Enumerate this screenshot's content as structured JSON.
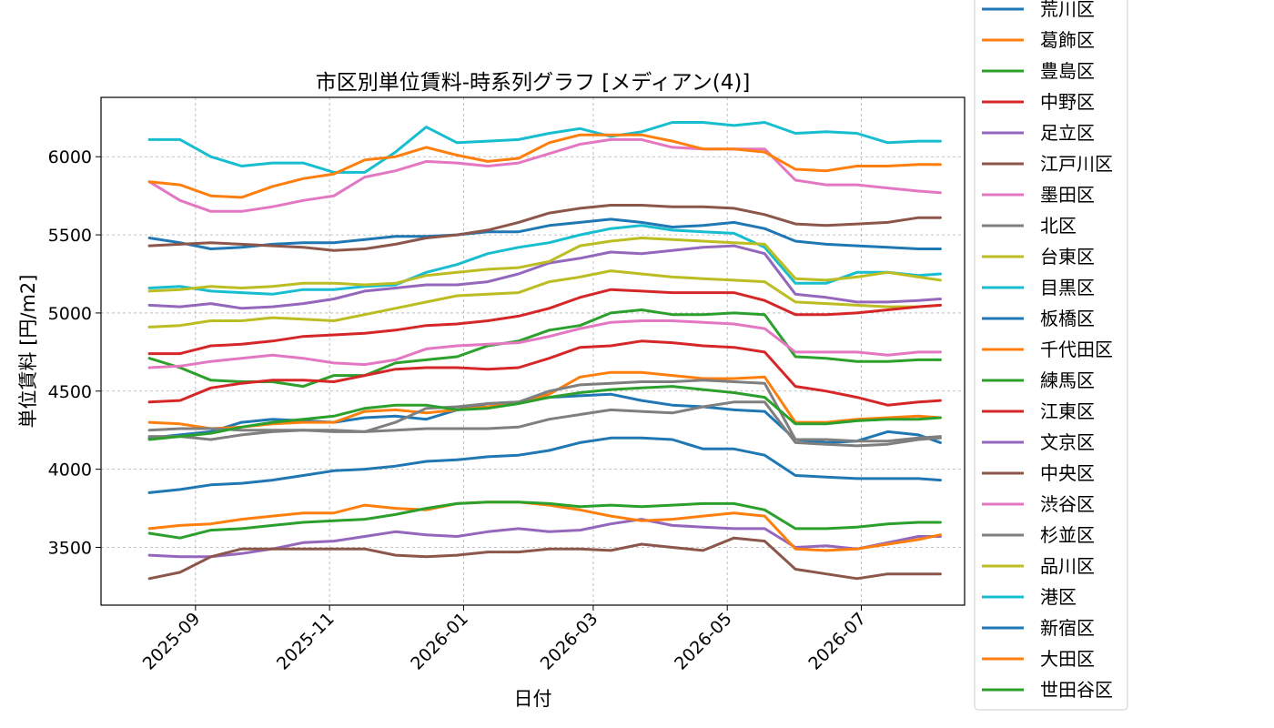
{
  "chart_data": {
    "type": "line",
    "title": "市区別単位賃料-時系列グラフ [メディアン(4)]",
    "xlabel": "日付",
    "ylabel": "単位賃料 [円/m2]",
    "xlim": [
      "2025-07-20",
      "2026-08-17"
    ],
    "ylim": [
      3130,
      6380
    ],
    "xticks": [
      "2025-09",
      "2025-11",
      "2026-01",
      "2026-03",
      "2026-05",
      "2026-07"
    ],
    "yticks": [
      3500,
      4000,
      4500,
      5000,
      5500,
      6000
    ],
    "grid": true,
    "legend_position": "right",
    "x": [
      "2025-08-11",
      "2025-08-25",
      "2025-09-08",
      "2025-09-22",
      "2025-10-06",
      "2025-10-20",
      "2025-11-03",
      "2025-11-17",
      "2025-12-01",
      "2025-12-15",
      "2025-12-29",
      "2026-01-12",
      "2026-01-26",
      "2026-02-09",
      "2026-02-23",
      "2026-03-09",
      "2026-03-23",
      "2026-04-06",
      "2026-04-20",
      "2026-05-04",
      "2026-05-18",
      "2026-06-01",
      "2026-06-15",
      "2026-06-29",
      "2026-07-13",
      "2026-07-27",
      "2026-08-06"
    ],
    "series": [
      {
        "name": "荒川区",
        "color": "#1f77b4",
        "values": [
          4200,
          4220,
          4240,
          4300,
          4320,
          4310,
          4300,
          4330,
          4340,
          4320,
          4380,
          4420,
          4430,
          4460,
          4470,
          4480,
          4440,
          4410,
          4400,
          4380,
          4370,
          4190,
          4170,
          4180,
          4240,
          4220,
          4170
        ]
      },
      {
        "name": "葛飾区",
        "color": "#ff7f0e",
        "values": [
          4300,
          4290,
          4260,
          4270,
          4290,
          4300,
          4300,
          4370,
          4380,
          4360,
          4380,
          4400,
          4430,
          4480,
          4590,
          4620,
          4620,
          4600,
          4580,
          4580,
          4590,
          4300,
          4300,
          4320,
          4330,
          4340,
          4330
        ]
      },
      {
        "name": "豊島区",
        "color": "#2ca02c",
        "values": [
          4710,
          4650,
          4570,
          4560,
          4560,
          4530,
          4600,
          4600,
          4680,
          4700,
          4720,
          4790,
          4820,
          4890,
          4920,
          5000,
          5020,
          4990,
          4990,
          5000,
          4990,
          4720,
          4710,
          4690,
          4690,
          4700,
          4700
        ]
      },
      {
        "name": "中野区",
        "color": "#d62728",
        "values": [
          4430,
          4440,
          4520,
          4550,
          4570,
          4570,
          4560,
          4600,
          4640,
          4650,
          4650,
          4640,
          4650,
          4710,
          4780,
          4790,
          4820,
          4810,
          4790,
          4780,
          4750,
          4530,
          4500,
          4460,
          4410,
          4430,
          4440
        ]
      },
      {
        "name": "足立区",
        "color": "#9467bd",
        "values": [
          3450,
          3440,
          3440,
          3460,
          3490,
          3530,
          3540,
          3570,
          3600,
          3580,
          3570,
          3600,
          3620,
          3600,
          3610,
          3650,
          3680,
          3640,
          3630,
          3620,
          3620,
          3500,
          3510,
          3490,
          3530,
          3570,
          3570
        ]
      },
      {
        "name": "江戸川区",
        "color": "#8c564b",
        "values": [
          3300,
          3340,
          3440,
          3490,
          3490,
          3490,
          3490,
          3490,
          3450,
          3440,
          3450,
          3470,
          3470,
          3490,
          3490,
          3480,
          3520,
          3500,
          3480,
          3560,
          3540,
          3360,
          3330,
          3300,
          3330,
          3330,
          3330
        ]
      },
      {
        "name": "墨田区",
        "color": "#e377c2",
        "values": [
          5840,
          5720,
          5650,
          5650,
          5680,
          5720,
          5750,
          5870,
          5910,
          5970,
          5960,
          5940,
          5960,
          6020,
          6080,
          6110,
          6110,
          6060,
          6050,
          6050,
          6050,
          5850,
          5820,
          5820,
          5800,
          5780,
          5770
        ]
      },
      {
        "name": "北区",
        "color": "#7f7f7f",
        "values": [
          4250,
          4260,
          4260,
          4250,
          4250,
          4250,
          4240,
          4240,
          4300,
          4390,
          4400,
          4420,
          4430,
          4500,
          4540,
          4550,
          4560,
          4560,
          4570,
          4560,
          4550,
          4190,
          4190,
          4180,
          4180,
          4200,
          4210
        ]
      },
      {
        "name": "台東区",
        "color": "#bcbd22",
        "values": [
          4910,
          4920,
          4950,
          4950,
          4970,
          4960,
          4950,
          4990,
          5030,
          5070,
          5110,
          5120,
          5130,
          5200,
          5230,
          5270,
          5250,
          5230,
          5220,
          5210,
          5200,
          5070,
          5060,
          5050,
          5040,
          5040,
          5050
        ]
      },
      {
        "name": "目黒区",
        "color": "#17becf",
        "values": [
          5160,
          5170,
          5140,
          5130,
          5120,
          5150,
          5150,
          5170,
          5180,
          5260,
          5310,
          5380,
          5420,
          5450,
          5500,
          5540,
          5560,
          5530,
          5520,
          5510,
          5420,
          5190,
          5190,
          5260,
          5260,
          5240,
          5250
        ]
      },
      {
        "name": "板橋区",
        "color": "#1f77b4",
        "values": [
          5480,
          5450,
          5410,
          5420,
          5440,
          5450,
          5450,
          5470,
          5490,
          5490,
          5500,
          5520,
          5520,
          5560,
          5580,
          5600,
          5580,
          5550,
          5560,
          5580,
          5540,
          5460,
          5440,
          5430,
          5420,
          5410,
          5410
        ]
      },
      {
        "name": "千代田区",
        "color": "#ff7f0e",
        "values": [
          3620,
          3640,
          3650,
          3680,
          3700,
          3720,
          3720,
          3770,
          3750,
          3740,
          3780,
          3790,
          3790,
          3770,
          3740,
          3700,
          3670,
          3680,
          3700,
          3720,
          3700,
          3490,
          3480,
          3490,
          3520,
          3550,
          3580
        ]
      },
      {
        "name": "練馬区",
        "color": "#2ca02c",
        "values": [
          3590,
          3560,
          3610,
          3620,
          3640,
          3660,
          3670,
          3680,
          3710,
          3750,
          3780,
          3790,
          3790,
          3780,
          3760,
          3770,
          3760,
          3770,
          3780,
          3780,
          3740,
          3620,
          3620,
          3630,
          3650,
          3660,
          3660
        ]
      },
      {
        "name": "江東区",
        "color": "#d62728",
        "values": [
          4740,
          4740,
          4790,
          4800,
          4820,
          4850,
          4860,
          4870,
          4890,
          4920,
          4930,
          4950,
          4980,
          5030,
          5100,
          5150,
          5140,
          5130,
          5130,
          5130,
          5080,
          4990,
          4990,
          5000,
          5020,
          5040,
          5050
        ]
      },
      {
        "name": "文京区",
        "color": "#9467bd",
        "values": [
          5050,
          5040,
          5060,
          5030,
          5040,
          5060,
          5090,
          5140,
          5160,
          5180,
          5180,
          5200,
          5250,
          5320,
          5350,
          5390,
          5380,
          5400,
          5420,
          5430,
          5380,
          5120,
          5100,
          5070,
          5070,
          5080,
          5090
        ]
      },
      {
        "name": "中央区",
        "color": "#8c564b",
        "values": [
          5430,
          5440,
          5450,
          5440,
          5430,
          5420,
          5400,
          5410,
          5440,
          5480,
          5500,
          5530,
          5580,
          5640,
          5670,
          5690,
          5690,
          5680,
          5680,
          5670,
          5630,
          5570,
          5560,
          5570,
          5580,
          5610,
          5610
        ]
      },
      {
        "name": "渋谷区",
        "color": "#e377c2",
        "values": [
          4650,
          4660,
          4690,
          4710,
          4730,
          4710,
          4680,
          4670,
          4700,
          4770,
          4790,
          4800,
          4810,
          4850,
          4900,
          4940,
          4950,
          4950,
          4940,
          4930,
          4900,
          4750,
          4750,
          4750,
          4730,
          4750,
          4750
        ]
      },
      {
        "name": "杉並区",
        "color": "#7f7f7f",
        "values": [
          4210,
          4210,
          4190,
          4220,
          4240,
          4250,
          4250,
          4240,
          4250,
          4260,
          4260,
          4260,
          4270,
          4320,
          4350,
          4380,
          4370,
          4360,
          4400,
          4430,
          4430,
          4170,
          4160,
          4150,
          4160,
          4190,
          4200
        ]
      },
      {
        "name": "品川区",
        "color": "#bcbd22",
        "values": [
          5140,
          5150,
          5170,
          5160,
          5170,
          5190,
          5190,
          5180,
          5190,
          5240,
          5260,
          5280,
          5290,
          5330,
          5430,
          5460,
          5480,
          5470,
          5460,
          5450,
          5440,
          5220,
          5210,
          5230,
          5260,
          5230,
          5210
        ]
      },
      {
        "name": "港区",
        "color": "#17becf",
        "values": [
          6110,
          6110,
          6000,
          5940,
          5960,
          5960,
          5900,
          5900,
          6030,
          6190,
          6090,
          6100,
          6110,
          6150,
          6180,
          6130,
          6160,
          6220,
          6220,
          6200,
          6220,
          6150,
          6160,
          6150,
          6090,
          6100,
          6100
        ]
      },
      {
        "name": "新宿区",
        "color": "#1f77b4",
        "values": [
          3850,
          3870,
          3900,
          3910,
          3930,
          3960,
          3990,
          4000,
          4020,
          4050,
          4060,
          4080,
          4090,
          4120,
          4170,
          4200,
          4200,
          4190,
          4130,
          4130,
          4090,
          3960,
          3950,
          3940,
          3940,
          3940,
          3930
        ]
      },
      {
        "name": "大田区",
        "color": "#ff7f0e",
        "values": [
          5840,
          5820,
          5750,
          5740,
          5810,
          5860,
          5890,
          5980,
          6000,
          6060,
          6010,
          5970,
          5990,
          6090,
          6140,
          6140,
          6140,
          6100,
          6050,
          6050,
          6030,
          5920,
          5910,
          5940,
          5940,
          5950,
          5950
        ]
      },
      {
        "name": "世田谷区",
        "color": "#2ca02c",
        "values": [
          4190,
          4210,
          4230,
          4270,
          4300,
          4320,
          4340,
          4390,
          4410,
          4410,
          4380,
          4390,
          4420,
          4460,
          4490,
          4510,
          4520,
          4530,
          4510,
          4490,
          4460,
          4290,
          4290,
          4310,
          4320,
          4320,
          4330
        ]
      }
    ]
  }
}
